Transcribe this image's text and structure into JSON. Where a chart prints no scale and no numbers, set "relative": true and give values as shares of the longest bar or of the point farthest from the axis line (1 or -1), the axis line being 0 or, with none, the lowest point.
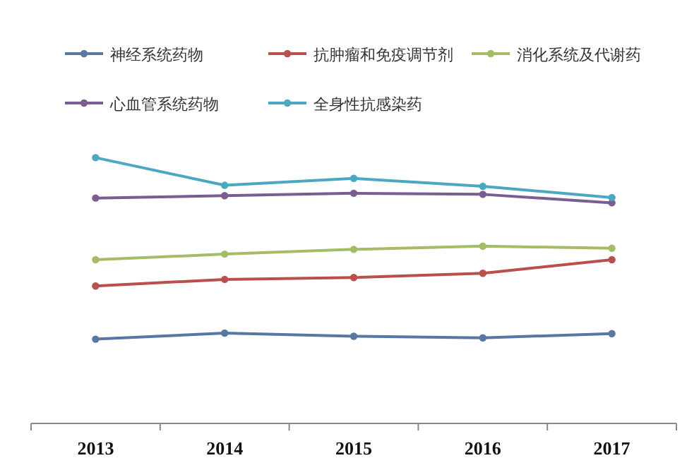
{
  "chart_data": {
    "type": "line",
    "relative": true,
    "categories": [
      "2013",
      "2014",
      "2015",
      "2016",
      "2017"
    ],
    "legend": "top",
    "marker": "circle",
    "series": [
      {
        "name": "神经系统药物",
        "color": "#5878a4",
        "values": [
          0.317,
          0.34,
          0.328,
          0.322,
          0.338
        ]
      },
      {
        "name": "抗肿瘤和免疫调节剂",
        "color": "#b9504c",
        "values": [
          0.517,
          0.542,
          0.549,
          0.565,
          0.616
        ]
      },
      {
        "name": "消化系统及代谢药",
        "color": "#a5bc66",
        "values": [
          0.616,
          0.637,
          0.655,
          0.667,
          0.659
        ]
      },
      {
        "name": "心血管系统药物",
        "color": "#7a5e92",
        "values": [
          0.848,
          0.857,
          0.866,
          0.862,
          0.83
        ]
      },
      {
        "name": "全身性抗感染药",
        "color": "#4ba8c2",
        "values": [
          1,
          0.896,
          0.922,
          0.892,
          0.85
        ]
      }
    ]
  }
}
